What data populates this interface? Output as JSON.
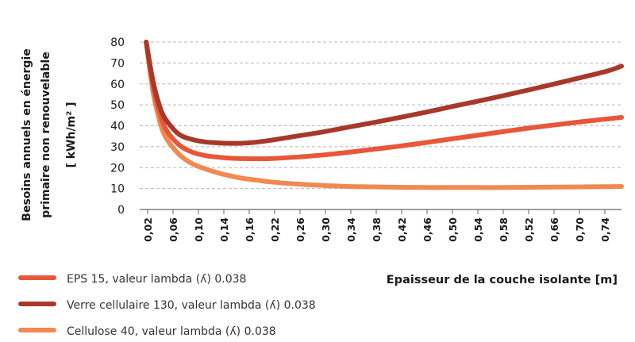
{
  "chart_data": {
    "type": "line",
    "ylabel_lines": [
      "Besoins annuels en énergie",
      "primaire non renouvelable",
      "[ kWh/m² ]"
    ],
    "xlabel": "Epaisseur de la couche isolante [m]",
    "ylim": [
      0,
      80
    ],
    "yticks": [
      0,
      10,
      20,
      30,
      40,
      50,
      60,
      70,
      80
    ],
    "xlim": [
      0.02,
      0.76
    ],
    "xtick_labels": [
      "0,02",
      "0,06",
      "0,10",
      "0,14",
      "0,16",
      "0,22",
      "0,26",
      "0,30",
      "0,34",
      "0,38",
      "0,42",
      "0,46",
      "0,50",
      "0,54",
      "0,58",
      "0,52",
      "0,66",
      "0,70",
      "0,74"
    ],
    "grid": true,
    "series": [
      {
        "name": "EPS 15, valeur lambda (ʎ) 0.038",
        "color": "#e8573a",
        "x": [
          0.03,
          0.04,
          0.05,
          0.06,
          0.08,
          0.1,
          0.12,
          0.14,
          0.16,
          0.18,
          0.2,
          0.22,
          0.26,
          0.3,
          0.34,
          0.38,
          0.42,
          0.46,
          0.5,
          0.54,
          0.58,
          0.62,
          0.66,
          0.7,
          0.74,
          0.76
        ],
        "y": [
          80,
          60,
          47,
          38.5,
          31,
          27.5,
          25.8,
          25,
          24.5,
          24.3,
          24.2,
          24.3,
          25,
          26,
          27.3,
          28.8,
          30.3,
          32,
          33.8,
          35.5,
          37.3,
          39,
          40.5,
          42,
          43.3,
          44
        ]
      },
      {
        "name": "Verre cellulaire 130, valeur lambda (ʎ) 0.038",
        "color": "#a8392a",
        "x": [
          0.03,
          0.04,
          0.05,
          0.06,
          0.08,
          0.1,
          0.12,
          0.14,
          0.16,
          0.18,
          0.2,
          0.22,
          0.26,
          0.3,
          0.34,
          0.38,
          0.42,
          0.46,
          0.5,
          0.54,
          0.58,
          0.62,
          0.66,
          0.7,
          0.74,
          0.76
        ],
        "y": [
          80,
          62,
          50,
          43,
          36,
          33.5,
          32.3,
          31.8,
          31.6,
          31.7,
          32.2,
          33,
          35,
          37,
          39.3,
          41.6,
          44,
          46.5,
          49.2,
          51.8,
          54.5,
          57.3,
          60.2,
          63.2,
          66.3,
          68.5
        ]
      },
      {
        "name": "Cellulose 40, valeur lambda (ʎ) 0.038",
        "color": "#f08a50",
        "x": [
          0.03,
          0.04,
          0.05,
          0.06,
          0.08,
          0.1,
          0.12,
          0.14,
          0.16,
          0.18,
          0.2,
          0.22,
          0.26,
          0.3,
          0.34,
          0.38,
          0.42,
          0.46,
          0.5,
          0.54,
          0.58,
          0.62,
          0.66,
          0.7,
          0.74,
          0.76
        ],
        "y": [
          80,
          57,
          43,
          34.5,
          26.5,
          22,
          19.5,
          17.5,
          16,
          14.8,
          14,
          13.2,
          12.2,
          11.5,
          11,
          10.8,
          10.6,
          10.5,
          10.5,
          10.5,
          10.5,
          10.6,
          10.7,
          10.8,
          10.9,
          11
        ]
      }
    ]
  }
}
